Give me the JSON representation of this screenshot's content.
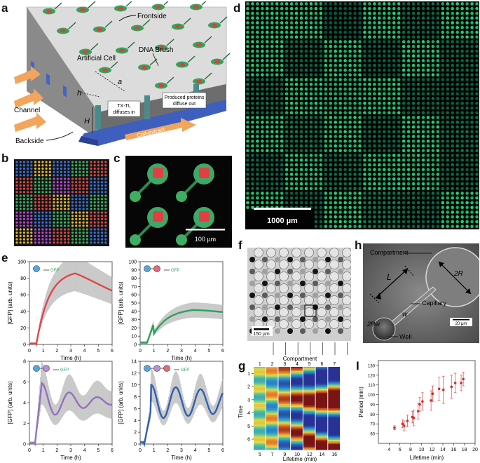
{
  "labels": {
    "a": "a",
    "b": "b",
    "c": "c",
    "d": "d",
    "e": "e",
    "f": "f",
    "g": "g",
    "h": "h",
    "i": "I"
  },
  "panel_a": {
    "frontside": "Frontside",
    "artificial_cell": "Artificial Cell",
    "dna_brush": "DNA Brush",
    "a": "a",
    "h": "h",
    "H": "H",
    "channel": "Channel",
    "backside": "Backside",
    "txtl": "TX-TL diffuses in",
    "txtl_1": "TX-TL",
    "txtl_2": "diffuses in",
    "produced_1": "Produced proteins",
    "produced_2": "diffuse out",
    "cell_extract": "Cell-extract"
  },
  "panel_c": {
    "scale": "100 µm"
  },
  "panel_d": {
    "scale": "1000 µm"
  },
  "panel_e": {
    "xlabel": "Time (h)",
    "ylabel": "[GFP] (arb. units)",
    "gfp": "GFP",
    "plots": [
      {
        "color": "#e04848",
        "ymax": 100,
        "yticks": [
          0,
          20,
          40,
          60,
          80,
          100
        ],
        "xticks": [
          0,
          1,
          2,
          3,
          4,
          5,
          6
        ]
      },
      {
        "color": "#2aa35a",
        "ymax": 100,
        "yticks": [
          0,
          10,
          20,
          30,
          40,
          50,
          60,
          70,
          80,
          90,
          100
        ],
        "xticks": [
          0,
          1,
          2,
          3,
          4,
          5,
          6
        ]
      },
      {
        "color": "#9470c0",
        "ymax": 8,
        "yticks": [
          0,
          2,
          4,
          6,
          8
        ],
        "xticks": [
          0,
          1,
          2,
          3,
          4,
          5,
          6
        ]
      },
      {
        "color": "#2e5fb0",
        "ymax": 14,
        "yticks": [
          0,
          2,
          4,
          6,
          8,
          10,
          12,
          14
        ],
        "xticks": [
          0,
          1,
          2,
          3,
          4,
          5,
          6
        ]
      }
    ]
  },
  "panel_f": {
    "scale": "150 µm"
  },
  "panel_g": {
    "compartment_label": "Compartment",
    "compartments": [
      "1",
      "2",
      "3",
      "4",
      "5",
      "6",
      "7"
    ],
    "ylabel": "Time",
    "yticks": [
      "1",
      "2",
      "3",
      "4",
      "5",
      "6"
    ],
    "xlabel": "Lifetime (min)",
    "lifetimes": [
      "5",
      "7",
      "9",
      "10",
      "12",
      "14",
      "16"
    ]
  },
  "panel_h": {
    "compartment": "Compartment",
    "L": "L",
    "R": "2R",
    "capillary": "Capillary",
    "w": "w",
    "Rw": "2Rw",
    "well": "Well",
    "scale": "20 µm"
  },
  "chart_data": {
    "type": "scatter",
    "title": "",
    "xlabel": "Lifetime (min)",
    "ylabel": "Period (min)",
    "xlim": [
      2,
      20
    ],
    "ylim": [
      50,
      135
    ],
    "xticks": [
      4,
      6,
      8,
      10,
      12,
      14,
      16,
      18,
      20
    ],
    "yticks": [
      60,
      70,
      80,
      90,
      100,
      110,
      120,
      130
    ],
    "points": [
      {
        "x": 5.0,
        "y": 66,
        "err": 2
      },
      {
        "x": 6.5,
        "y": 70,
        "err": 4
      },
      {
        "x": 6.8,
        "y": 68,
        "err": 5
      },
      {
        "x": 7.4,
        "y": 73,
        "err": 6
      },
      {
        "x": 8.3,
        "y": 77,
        "err": 6
      },
      {
        "x": 8.6,
        "y": 76,
        "err": 8
      },
      {
        "x": 9.4,
        "y": 83,
        "err": 8
      },
      {
        "x": 9.7,
        "y": 90,
        "err": 7
      },
      {
        "x": 10.2,
        "y": 93,
        "err": 9
      },
      {
        "x": 11.8,
        "y": 94,
        "err": 10
      },
      {
        "x": 12.1,
        "y": 101,
        "err": 8
      },
      {
        "x": 13.3,
        "y": 106,
        "err": 12
      },
      {
        "x": 14.1,
        "y": 105,
        "err": 14
      },
      {
        "x": 15.6,
        "y": 108,
        "err": 12
      },
      {
        "x": 16.3,
        "y": 112,
        "err": 10
      },
      {
        "x": 17.4,
        "y": 112,
        "err": 8
      },
      {
        "x": 17.8,
        "y": 116,
        "err": 7
      }
    ]
  }
}
